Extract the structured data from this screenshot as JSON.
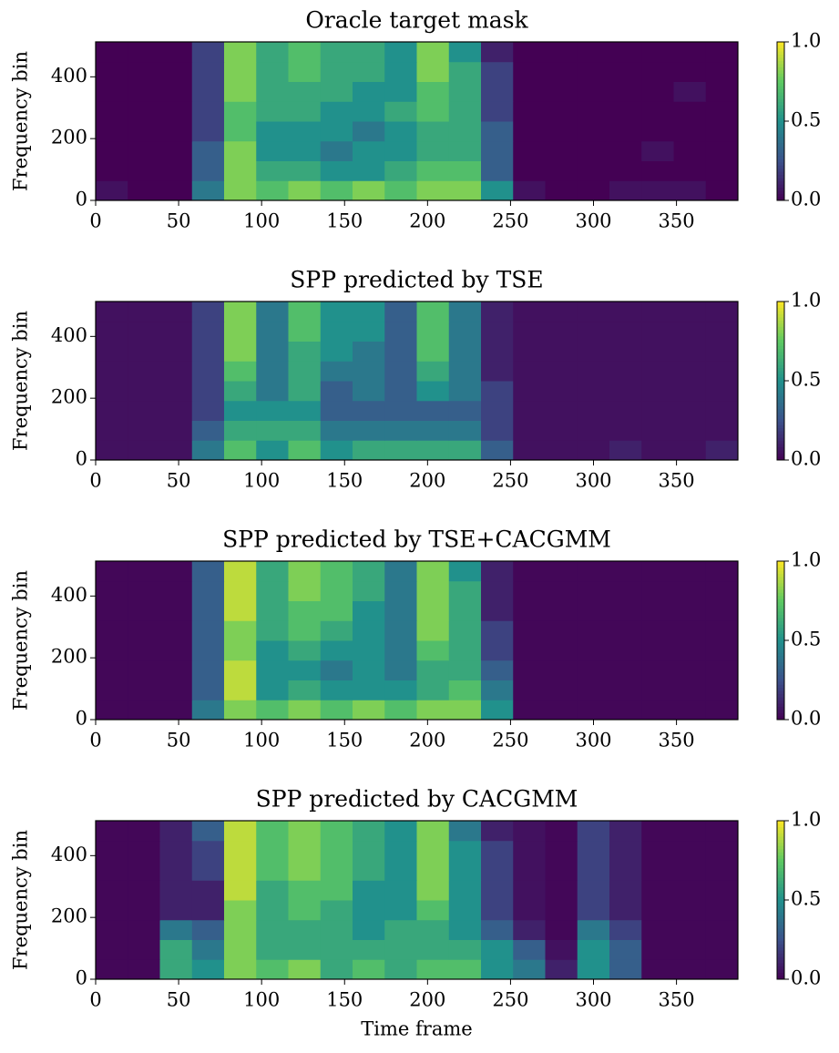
{
  "chart_data": [
    {
      "type": "heatmap",
      "title": "Oracle target mask",
      "ylabel": "Frequency bin",
      "colormap": "viridis",
      "xlim": [
        0,
        387
      ],
      "ylim": [
        0,
        513
      ],
      "xticks": [
        0,
        50,
        100,
        150,
        200,
        250,
        300,
        350
      ],
      "yticks": [
        0,
        200,
        400
      ],
      "clim": [
        0,
        1
      ],
      "cticks": [
        {
          "value": 0,
          "label": "0.0"
        },
        0.5,
        {
          "value": 1,
          "label": "1.0"
        }
      ],
      "z": [
        [
          0.05,
          0,
          0,
          0.4,
          0.8,
          0.7,
          0.8,
          0.7,
          0.8,
          0.7,
          0.8,
          0.8,
          0.5,
          0.05,
          0,
          0,
          0.05,
          0.05,
          0.05,
          0
        ],
        [
          0,
          0,
          0,
          0.3,
          0.8,
          0.6,
          0.6,
          0.5,
          0.5,
          0.6,
          0.7,
          0.7,
          0.3,
          0,
          0,
          0,
          0,
          0,
          0,
          0
        ],
        [
          0,
          0,
          0,
          0.3,
          0.8,
          0.5,
          0.5,
          0.4,
          0.5,
          0.5,
          0.6,
          0.6,
          0.3,
          0,
          0,
          0,
          0,
          0.05,
          0,
          0
        ],
        [
          0,
          0,
          0,
          0.2,
          0.7,
          0.5,
          0.5,
          0.5,
          0.4,
          0.5,
          0.6,
          0.6,
          0.3,
          0,
          0,
          0,
          0,
          0,
          0,
          0
        ],
        [
          0,
          0,
          0,
          0.2,
          0.7,
          0.6,
          0.6,
          0.5,
          0.5,
          0.6,
          0.7,
          0.6,
          0.2,
          0,
          0,
          0,
          0,
          0,
          0,
          0
        ],
        [
          0,
          0,
          0,
          0.2,
          0.8,
          0.6,
          0.6,
          0.6,
          0.5,
          0.5,
          0.7,
          0.6,
          0.2,
          0,
          0,
          0,
          0,
          0,
          0.05,
          0
        ],
        [
          0,
          0,
          0,
          0.2,
          0.8,
          0.6,
          0.7,
          0.6,
          0.6,
          0.5,
          0.8,
          0.6,
          0.2,
          0,
          0,
          0,
          0,
          0,
          0,
          0
        ],
        [
          0,
          0,
          0,
          0.2,
          0.8,
          0.6,
          0.7,
          0.6,
          0.6,
          0.5,
          0.8,
          0.5,
          0.1,
          0,
          0,
          0,
          0,
          0,
          0,
          0
        ]
      ]
    },
    {
      "type": "heatmap",
      "title": "SPP predicted by TSE",
      "ylabel": "Frequency bin",
      "colormap": "viridis",
      "xlim": [
        0,
        387
      ],
      "ylim": [
        0,
        513
      ],
      "xticks": [
        0,
        50,
        100,
        150,
        200,
        250,
        300,
        350
      ],
      "yticks": [
        0,
        200,
        400
      ],
      "clim": [
        0,
        1
      ],
      "cticks": [
        {
          "value": 0,
          "label": "0.0"
        },
        0.5,
        {
          "value": 1,
          "label": "1.0"
        }
      ],
      "z": [
        [
          0.05,
          0.05,
          0.05,
          0.4,
          0.7,
          0.5,
          0.7,
          0.5,
          0.6,
          0.6,
          0.6,
          0.6,
          0.3,
          0.05,
          0.05,
          0.05,
          0.1,
          0.05,
          0.05,
          0.1
        ],
        [
          0.05,
          0.05,
          0.05,
          0.3,
          0.6,
          0.6,
          0.6,
          0.4,
          0.4,
          0.4,
          0.4,
          0.4,
          0.2,
          0.05,
          0.05,
          0.05,
          0.05,
          0.05,
          0.05,
          0.05
        ],
        [
          0.05,
          0.05,
          0.05,
          0.2,
          0.5,
          0.5,
          0.5,
          0.3,
          0.3,
          0.3,
          0.3,
          0.3,
          0.2,
          0.05,
          0.05,
          0.05,
          0.05,
          0.05,
          0.05,
          0.05
        ],
        [
          0.05,
          0.05,
          0.05,
          0.2,
          0.6,
          0.4,
          0.6,
          0.3,
          0.4,
          0.3,
          0.5,
          0.4,
          0.2,
          0.05,
          0.05,
          0.05,
          0.05,
          0.05,
          0.05,
          0.05
        ],
        [
          0.05,
          0.05,
          0.05,
          0.2,
          0.7,
          0.4,
          0.6,
          0.4,
          0.4,
          0.3,
          0.6,
          0.4,
          0.1,
          0.05,
          0.05,
          0.05,
          0.05,
          0.05,
          0.05,
          0.05
        ],
        [
          0.05,
          0.05,
          0.05,
          0.2,
          0.8,
          0.4,
          0.6,
          0.5,
          0.4,
          0.3,
          0.7,
          0.4,
          0.1,
          0.05,
          0.05,
          0.05,
          0.05,
          0.05,
          0.05,
          0.05
        ],
        [
          0.05,
          0.05,
          0.05,
          0.2,
          0.8,
          0.4,
          0.7,
          0.5,
          0.5,
          0.3,
          0.7,
          0.4,
          0.1,
          0.05,
          0.05,
          0.05,
          0.05,
          0.05,
          0.05,
          0.05
        ],
        [
          0.05,
          0.05,
          0.05,
          0.2,
          0.8,
          0.4,
          0.7,
          0.5,
          0.5,
          0.3,
          0.7,
          0.4,
          0.1,
          0.05,
          0.05,
          0.05,
          0.05,
          0.05,
          0.05,
          0.05
        ]
      ]
    },
    {
      "type": "heatmap",
      "title": "SPP predicted by TSE+CACGMM",
      "ylabel": "Frequency bin",
      "colormap": "viridis",
      "xlim": [
        0,
        387
      ],
      "ylim": [
        0,
        513
      ],
      "xticks": [
        0,
        50,
        100,
        150,
        200,
        250,
        300,
        350
      ],
      "yticks": [
        0,
        200,
        400
      ],
      "clim": [
        0,
        1
      ],
      "cticks": [
        {
          "value": 0,
          "label": "0.0"
        },
        0.5,
        {
          "value": 1,
          "label": "1.0"
        }
      ],
      "z": [
        [
          0.02,
          0.02,
          0.02,
          0.4,
          0.8,
          0.7,
          0.8,
          0.7,
          0.8,
          0.7,
          0.8,
          0.8,
          0.5,
          0.02,
          0.02,
          0.02,
          0.02,
          0.02,
          0.02,
          0.02
        ],
        [
          0.02,
          0.02,
          0.02,
          0.3,
          0.9,
          0.5,
          0.6,
          0.5,
          0.5,
          0.5,
          0.6,
          0.7,
          0.4,
          0.02,
          0.02,
          0.02,
          0.02,
          0.02,
          0.02,
          0.02
        ],
        [
          0.02,
          0.02,
          0.02,
          0.3,
          0.9,
          0.5,
          0.5,
          0.4,
          0.5,
          0.4,
          0.6,
          0.6,
          0.3,
          0.02,
          0.02,
          0.02,
          0.02,
          0.02,
          0.02,
          0.02
        ],
        [
          0.02,
          0.02,
          0.02,
          0.3,
          0.8,
          0.5,
          0.6,
          0.5,
          0.5,
          0.4,
          0.7,
          0.6,
          0.2,
          0.02,
          0.02,
          0.02,
          0.02,
          0.02,
          0.02,
          0.02
        ],
        [
          0.02,
          0.02,
          0.02,
          0.3,
          0.8,
          0.6,
          0.7,
          0.6,
          0.5,
          0.4,
          0.8,
          0.6,
          0.2,
          0.02,
          0.02,
          0.02,
          0.02,
          0.02,
          0.02,
          0.02
        ],
        [
          0.02,
          0.02,
          0.02,
          0.3,
          0.9,
          0.6,
          0.7,
          0.7,
          0.5,
          0.4,
          0.8,
          0.6,
          0.1,
          0.02,
          0.02,
          0.02,
          0.02,
          0.02,
          0.02,
          0.02
        ],
        [
          0.02,
          0.02,
          0.02,
          0.3,
          0.9,
          0.6,
          0.8,
          0.7,
          0.6,
          0.4,
          0.8,
          0.6,
          0.1,
          0.02,
          0.02,
          0.02,
          0.02,
          0.02,
          0.02,
          0.02
        ],
        [
          0.02,
          0.02,
          0.02,
          0.3,
          0.9,
          0.6,
          0.8,
          0.7,
          0.6,
          0.4,
          0.8,
          0.5,
          0.1,
          0.02,
          0.02,
          0.02,
          0.02,
          0.02,
          0.02,
          0.02
        ]
      ]
    },
    {
      "type": "heatmap",
      "title": "SPP predicted by CACGMM",
      "ylabel": "Frequency bin",
      "xlabel": "Time frame",
      "colormap": "viridis",
      "xlim": [
        0,
        387
      ],
      "ylim": [
        0,
        513
      ],
      "xticks": [
        0,
        50,
        100,
        150,
        200,
        250,
        300,
        350
      ],
      "yticks": [
        0,
        200,
        400
      ],
      "clim": [
        0,
        1
      ],
      "cticks": [
        {
          "value": 0,
          "label": "0.0"
        },
        0.5,
        {
          "value": 1,
          "label": "1.0"
        }
      ],
      "z": [
        [
          0.02,
          0.02,
          0.6,
          0.5,
          0.8,
          0.7,
          0.8,
          0.6,
          0.7,
          0.6,
          0.7,
          0.7,
          0.5,
          0.4,
          0.1,
          0.5,
          0.3,
          0.02,
          0.02,
          0.02
        ],
        [
          0.02,
          0.02,
          0.6,
          0.4,
          0.8,
          0.6,
          0.6,
          0.6,
          0.6,
          0.6,
          0.6,
          0.6,
          0.5,
          0.3,
          0.05,
          0.5,
          0.3,
          0.02,
          0.02,
          0.02
        ],
        [
          0.02,
          0.02,
          0.4,
          0.3,
          0.8,
          0.6,
          0.6,
          0.6,
          0.5,
          0.6,
          0.6,
          0.5,
          0.3,
          0.1,
          0.02,
          0.4,
          0.2,
          0.02,
          0.02,
          0.02
        ],
        [
          0.02,
          0.02,
          0.1,
          0.1,
          0.8,
          0.6,
          0.7,
          0.6,
          0.5,
          0.5,
          0.7,
          0.5,
          0.2,
          0.05,
          0.02,
          0.2,
          0.1,
          0.02,
          0.02,
          0.02
        ],
        [
          0.02,
          0.02,
          0.1,
          0.1,
          0.9,
          0.6,
          0.7,
          0.7,
          0.5,
          0.5,
          0.8,
          0.5,
          0.2,
          0.05,
          0.02,
          0.2,
          0.1,
          0.02,
          0.02,
          0.02
        ],
        [
          0.02,
          0.02,
          0.1,
          0.2,
          0.9,
          0.7,
          0.8,
          0.7,
          0.6,
          0.5,
          0.8,
          0.5,
          0.2,
          0.05,
          0.02,
          0.2,
          0.1,
          0.02,
          0.02,
          0.02
        ],
        [
          0.02,
          0.02,
          0.1,
          0.2,
          0.9,
          0.7,
          0.8,
          0.7,
          0.6,
          0.5,
          0.8,
          0.5,
          0.2,
          0.05,
          0.02,
          0.2,
          0.1,
          0.02,
          0.02,
          0.02
        ],
        [
          0.02,
          0.02,
          0.1,
          0.3,
          0.9,
          0.7,
          0.8,
          0.7,
          0.6,
          0.5,
          0.8,
          0.4,
          0.1,
          0.05,
          0.02,
          0.2,
          0.1,
          0.02,
          0.02,
          0.02
        ]
      ]
    }
  ]
}
